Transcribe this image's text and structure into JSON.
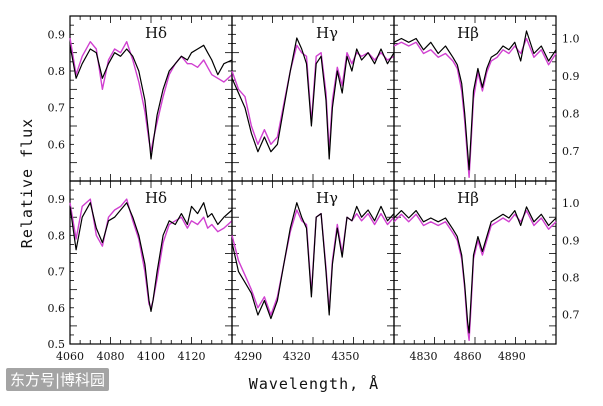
{
  "figure": {
    "ylabel": "Relative flux",
    "xlabel": "Wavelength, Å",
    "colors": {
      "observed": "#000000",
      "model": "#d040d0",
      "frame": "#000000"
    }
  },
  "watermark": {
    "text": "东方号|博科园"
  },
  "chart_data": [
    {
      "type": "line",
      "panel": "top-left",
      "label": "Hδ",
      "xlim": [
        4060,
        4140
      ],
      "ylim": [
        0.5,
        0.95
      ],
      "xticks": [],
      "yticks": [
        0.6,
        0.7,
        0.8,
        0.9
      ],
      "ytick_side": "left",
      "series": [
        {
          "role": "observed",
          "x": [
            4060,
            4063,
            4066,
            4070,
            4073,
            4076,
            4079,
            4082,
            4085,
            4088,
            4091,
            4094,
            4097,
            4099,
            4100,
            4101,
            4103,
            4106,
            4109,
            4112,
            4115,
            4118,
            4120,
            4123,
            4126,
            4128,
            4130,
            4133,
            4136,
            4140
          ],
          "y": [
            0.87,
            0.78,
            0.82,
            0.86,
            0.85,
            0.78,
            0.82,
            0.85,
            0.84,
            0.86,
            0.84,
            0.8,
            0.72,
            0.62,
            0.56,
            0.6,
            0.68,
            0.75,
            0.8,
            0.82,
            0.84,
            0.83,
            0.85,
            0.86,
            0.87,
            0.85,
            0.83,
            0.79,
            0.82,
            0.83
          ]
        },
        {
          "role": "model",
          "x": [
            4060,
            4063,
            4066,
            4070,
            4073,
            4076,
            4079,
            4082,
            4085,
            4088,
            4091,
            4094,
            4097,
            4099,
            4100,
            4101,
            4103,
            4106,
            4109,
            4112,
            4115,
            4118,
            4120,
            4123,
            4126,
            4128,
            4130,
            4133,
            4136,
            4140
          ],
          "y": [
            0.89,
            0.79,
            0.84,
            0.88,
            0.86,
            0.75,
            0.83,
            0.86,
            0.85,
            0.88,
            0.83,
            0.77,
            0.69,
            0.61,
            0.58,
            0.61,
            0.66,
            0.73,
            0.79,
            0.82,
            0.84,
            0.82,
            0.82,
            0.81,
            0.83,
            0.81,
            0.79,
            0.78,
            0.77,
            0.79
          ]
        }
      ]
    },
    {
      "type": "line",
      "panel": "top-middle",
      "label": "Hγ",
      "xlim": [
        4280,
        4380
      ],
      "ylim": [
        0.5,
        0.95
      ],
      "xticks": [],
      "yticks": [],
      "ytick_side": "none",
      "series": [
        {
          "role": "observed",
          "x": [
            4280,
            4284,
            4288,
            4292,
            4296,
            4300,
            4304,
            4308,
            4312,
            4316,
            4320,
            4323,
            4326,
            4329,
            4332,
            4335,
            4338,
            4340,
            4342,
            4345,
            4348,
            4351,
            4354,
            4357,
            4360,
            4364,
            4368,
            4372,
            4376,
            4380
          ],
          "y": [
            0.78,
            0.74,
            0.7,
            0.63,
            0.58,
            0.62,
            0.58,
            0.6,
            0.7,
            0.8,
            0.89,
            0.86,
            0.82,
            0.65,
            0.82,
            0.84,
            0.72,
            0.56,
            0.7,
            0.8,
            0.74,
            0.84,
            0.8,
            0.86,
            0.83,
            0.85,
            0.82,
            0.86,
            0.82,
            0.85
          ]
        },
        {
          "role": "model",
          "x": [
            4280,
            4284,
            4288,
            4292,
            4296,
            4300,
            4304,
            4308,
            4312,
            4316,
            4320,
            4323,
            4326,
            4329,
            4332,
            4335,
            4338,
            4340,
            4342,
            4345,
            4348,
            4351,
            4354,
            4357,
            4360,
            4364,
            4368,
            4372,
            4376,
            4380
          ],
          "y": [
            0.8,
            0.75,
            0.73,
            0.65,
            0.6,
            0.64,
            0.6,
            0.62,
            0.71,
            0.8,
            0.87,
            0.85,
            0.84,
            0.66,
            0.84,
            0.85,
            0.74,
            0.58,
            0.72,
            0.81,
            0.76,
            0.85,
            0.82,
            0.85,
            0.84,
            0.85,
            0.83,
            0.85,
            0.83,
            0.84
          ]
        }
      ]
    },
    {
      "type": "line",
      "panel": "top-right",
      "label": "Hβ",
      "xlim": [
        4810,
        4920
      ],
      "ylim": [
        0.62,
        1.06
      ],
      "xticks": [],
      "yticks": [
        0.7,
        0.8,
        0.9,
        1.0
      ],
      "ytick_side": "right",
      "series": [
        {
          "role": "observed",
          "x": [
            4810,
            4815,
            4820,
            4825,
            4830,
            4835,
            4840,
            4845,
            4850,
            4853,
            4856,
            4858,
            4860,
            4861,
            4862,
            4864,
            4867,
            4870,
            4873,
            4876,
            4880,
            4884,
            4888,
            4892,
            4896,
            4900,
            4905,
            4910,
            4915,
            4920
          ],
          "y": [
            0.99,
            1.0,
            0.99,
            1.0,
            0.97,
            0.99,
            0.96,
            0.98,
            0.95,
            0.93,
            0.88,
            0.8,
            0.7,
            0.65,
            0.72,
            0.86,
            0.92,
            0.87,
            0.92,
            0.95,
            0.96,
            0.98,
            0.97,
            0.99,
            0.94,
            1.02,
            0.96,
            0.98,
            0.94,
            0.97
          ]
        },
        {
          "role": "model",
          "x": [
            4810,
            4815,
            4820,
            4825,
            4830,
            4835,
            4840,
            4845,
            4850,
            4853,
            4856,
            4858,
            4860,
            4861,
            4862,
            4864,
            4867,
            4870,
            4873,
            4876,
            4880,
            4884,
            4888,
            4892,
            4896,
            4900,
            4905,
            4910,
            4915,
            4920
          ],
          "y": [
            0.98,
            0.99,
            0.98,
            0.99,
            0.96,
            0.97,
            0.95,
            0.96,
            0.94,
            0.92,
            0.86,
            0.78,
            0.68,
            0.63,
            0.7,
            0.84,
            0.91,
            0.86,
            0.91,
            0.94,
            0.95,
            0.97,
            0.96,
            0.98,
            0.96,
            1.0,
            0.95,
            0.97,
            0.93,
            0.96
          ]
        }
      ]
    },
    {
      "type": "line",
      "panel": "bottom-left",
      "label": "Hδ",
      "xlim": [
        4060,
        4140
      ],
      "ylim": [
        0.5,
        0.95
      ],
      "xticks": [
        4060,
        4080,
        4100,
        4120
      ],
      "yticks": [
        0.5,
        0.6,
        0.7,
        0.8,
        0.9
      ],
      "ytick_side": "left",
      "series": [
        {
          "role": "observed",
          "x": [
            4060,
            4063,
            4066,
            4070,
            4073,
            4076,
            4079,
            4082,
            4085,
            4088,
            4091,
            4094,
            4097,
            4099,
            4100,
            4101,
            4103,
            4106,
            4109,
            4112,
            4115,
            4118,
            4120,
            4123,
            4126,
            4128,
            4130,
            4133,
            4136,
            4140
          ],
          "y": [
            0.88,
            0.76,
            0.85,
            0.89,
            0.82,
            0.78,
            0.84,
            0.85,
            0.87,
            0.89,
            0.85,
            0.8,
            0.72,
            0.62,
            0.59,
            0.62,
            0.7,
            0.8,
            0.84,
            0.83,
            0.86,
            0.83,
            0.88,
            0.86,
            0.89,
            0.85,
            0.86,
            0.83,
            0.85,
            0.87
          ]
        },
        {
          "role": "model",
          "x": [
            4060,
            4063,
            4066,
            4070,
            4073,
            4076,
            4079,
            4082,
            4085,
            4088,
            4091,
            4094,
            4097,
            4099,
            4100,
            4101,
            4103,
            4106,
            4109,
            4112,
            4115,
            4118,
            4120,
            4123,
            4126,
            4128,
            4130,
            4133,
            4136,
            4140
          ],
          "y": [
            0.89,
            0.79,
            0.88,
            0.9,
            0.8,
            0.77,
            0.85,
            0.87,
            0.88,
            0.9,
            0.84,
            0.79,
            0.7,
            0.61,
            0.6,
            0.62,
            0.68,
            0.78,
            0.83,
            0.84,
            0.85,
            0.82,
            0.84,
            0.83,
            0.85,
            0.82,
            0.83,
            0.81,
            0.82,
            0.84
          ]
        }
      ]
    },
    {
      "type": "line",
      "panel": "bottom-middle",
      "label": "Hγ",
      "xlim": [
        4280,
        4380
      ],
      "ylim": [
        0.5,
        0.95
      ],
      "xticks": [
        4290,
        4320,
        4350
      ],
      "yticks": [],
      "ytick_side": "none",
      "series": [
        {
          "role": "observed",
          "x": [
            4280,
            4284,
            4288,
            4292,
            4296,
            4300,
            4304,
            4308,
            4312,
            4316,
            4320,
            4323,
            4326,
            4329,
            4332,
            4335,
            4338,
            4340,
            4342,
            4345,
            4348,
            4351,
            4354,
            4357,
            4360,
            4364,
            4368,
            4372,
            4376,
            4380
          ],
          "y": [
            0.78,
            0.7,
            0.67,
            0.64,
            0.58,
            0.62,
            0.57,
            0.62,
            0.72,
            0.82,
            0.89,
            0.85,
            0.82,
            0.63,
            0.85,
            0.86,
            0.7,
            0.58,
            0.72,
            0.82,
            0.74,
            0.85,
            0.84,
            0.88,
            0.85,
            0.87,
            0.84,
            0.88,
            0.84,
            0.86
          ]
        },
        {
          "role": "model",
          "x": [
            4280,
            4284,
            4288,
            4292,
            4296,
            4300,
            4304,
            4308,
            4312,
            4316,
            4320,
            4323,
            4326,
            4329,
            4332,
            4335,
            4338,
            4340,
            4342,
            4345,
            4348,
            4351,
            4354,
            4357,
            4360,
            4364,
            4368,
            4372,
            4376,
            4380
          ],
          "y": [
            0.8,
            0.73,
            0.69,
            0.65,
            0.6,
            0.63,
            0.58,
            0.63,
            0.72,
            0.81,
            0.87,
            0.84,
            0.83,
            0.64,
            0.85,
            0.86,
            0.71,
            0.59,
            0.73,
            0.83,
            0.75,
            0.85,
            0.84,
            0.86,
            0.84,
            0.86,
            0.83,
            0.86,
            0.83,
            0.85
          ]
        }
      ]
    },
    {
      "type": "line",
      "panel": "bottom-right",
      "label": "Hβ",
      "xlim": [
        4810,
        4920
      ],
      "ylim": [
        0.62,
        1.06
      ],
      "xticks": [
        4830,
        4860,
        4890
      ],
      "yticks": [
        0.7,
        0.8,
        0.9,
        1.0
      ],
      "ytick_side": "right",
      "series": [
        {
          "role": "observed",
          "x": [
            4810,
            4815,
            4820,
            4825,
            4830,
            4835,
            4840,
            4845,
            4850,
            4853,
            4856,
            4858,
            4860,
            4861,
            4862,
            4864,
            4867,
            4870,
            4873,
            4876,
            4880,
            4884,
            4888,
            4892,
            4896,
            4900,
            4905,
            4910,
            4915,
            4920
          ],
          "y": [
            0.96,
            0.98,
            0.96,
            0.98,
            0.95,
            0.96,
            0.95,
            0.96,
            0.93,
            0.91,
            0.86,
            0.78,
            0.68,
            0.65,
            0.72,
            0.86,
            0.91,
            0.87,
            0.91,
            0.95,
            0.96,
            0.97,
            0.96,
            0.98,
            0.94,
            0.99,
            0.95,
            0.97,
            0.94,
            0.96
          ]
        },
        {
          "role": "model",
          "x": [
            4810,
            4815,
            4820,
            4825,
            4830,
            4835,
            4840,
            4845,
            4850,
            4853,
            4856,
            4858,
            4860,
            4861,
            4862,
            4864,
            4867,
            4870,
            4873,
            4876,
            4880,
            4884,
            4888,
            4892,
            4896,
            4900,
            4905,
            4910,
            4915,
            4920
          ],
          "y": [
            0.95,
            0.97,
            0.95,
            0.97,
            0.94,
            0.95,
            0.94,
            0.95,
            0.92,
            0.9,
            0.85,
            0.77,
            0.66,
            0.63,
            0.7,
            0.85,
            0.9,
            0.86,
            0.9,
            0.94,
            0.95,
            0.96,
            0.95,
            0.97,
            0.95,
            0.98,
            0.94,
            0.96,
            0.93,
            0.95
          ]
        }
      ]
    }
  ]
}
